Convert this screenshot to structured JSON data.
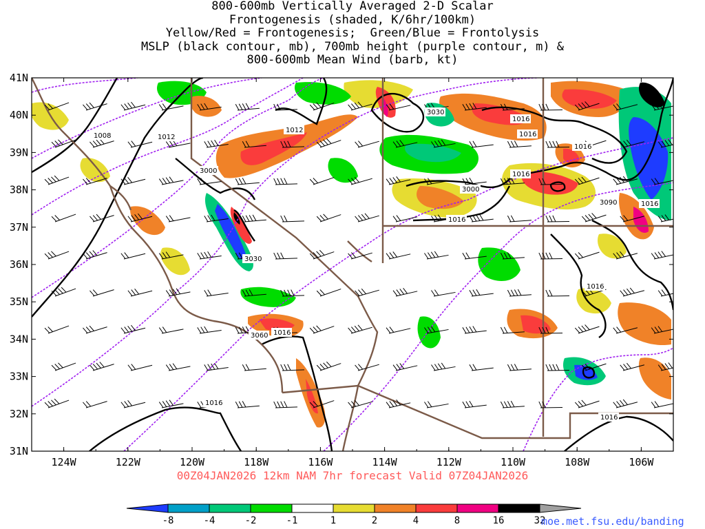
{
  "title": {
    "lines": [
      "800-600mb Vertically Averaged 2-D Scalar",
      "Frontogenesis (shaded, K/6hr/100km)",
      "Yellow/Red = Frontogenesis;  Green/Blue = Frontolysis",
      "MSLP (black contour, mb), 700mb height (purple contour, m) &",
      "800-600mb Mean Wind (barb, kt)"
    ]
  },
  "map": {
    "lat_labels": [
      "41N",
      "40N",
      "39N",
      "38N",
      "37N",
      "36N",
      "35N",
      "34N",
      "33N",
      "32N",
      "31N"
    ],
    "lon_labels": [
      "124W",
      "122W",
      "120W",
      "118W",
      "116W",
      "114W",
      "112W",
      "110W",
      "108W",
      "106W"
    ],
    "lat_range": [
      31,
      41
    ],
    "lon_range": [
      -125,
      -105
    ],
    "mslp_labels": [
      "1008",
      "1012",
      "1012",
      "1016",
      "1016",
      "1016",
      "1016",
      "1016",
      "1016",
      "1016",
      "1016"
    ],
    "height_labels": [
      "3000",
      "3030",
      "3030",
      "3000",
      "3090",
      "3060"
    ],
    "colors": {
      "mslp": "#000000",
      "height": "#a020f0",
      "border": "#7b5a48",
      "barb": "#000000"
    }
  },
  "colorbar": {
    "labels": [
      "-8",
      "-4",
      "-2",
      "-1",
      "1",
      "2",
      "4",
      "8",
      "16",
      "32"
    ],
    "colors": [
      "#1e3cff",
      "#00a0c8",
      "#00c878",
      "#00dc00",
      "#ffffff",
      "#e6dc32",
      "#f08228",
      "#fa3c3c",
      "#f00082",
      "#000000",
      "#a0a0a0"
    ]
  },
  "valid_line": "00Z04JAN2026 12km NAM 7hr forecast Valid 07Z04JAN2026",
  "credit": "moe.met.fsu.edu/banding"
}
